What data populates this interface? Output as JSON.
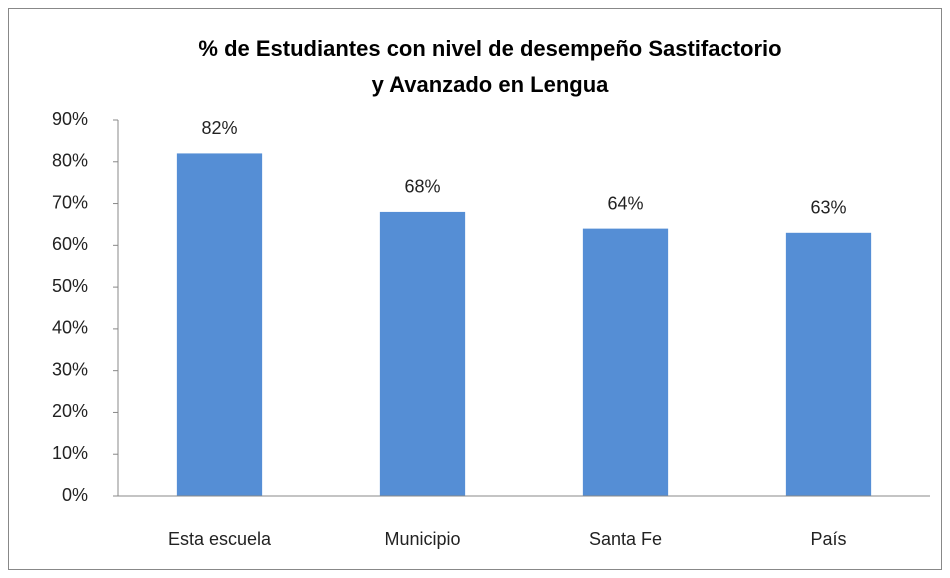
{
  "chart_data": {
    "type": "bar",
    "title": [
      "% de Estudiantes con nivel de desempeño Sastifactorio",
      "y Avanzado  en Lengua"
    ],
    "categories": [
      "Esta escuela",
      "Municipio",
      "Santa Fe",
      "País"
    ],
    "values": [
      82,
      68,
      64,
      63
    ],
    "value_labels": [
      "82%",
      "68%",
      "64%",
      "63%"
    ],
    "color": "#558ed5",
    "ylim": [
      0,
      90
    ],
    "yticks": [
      {
        "value": 0,
        "label": "0%"
      },
      {
        "value": 10,
        "label": "10%"
      },
      {
        "value": 20,
        "label": "20%"
      },
      {
        "value": 30,
        "label": "30%"
      },
      {
        "value": 40,
        "label": "40%"
      },
      {
        "value": 50,
        "label": "50%"
      },
      {
        "value": 60,
        "label": "60%"
      },
      {
        "value": 70,
        "label": "70%"
      },
      {
        "value": 80,
        "label": "80%"
      },
      {
        "value": 90,
        "label": "90%"
      }
    ],
    "grid": false
  }
}
